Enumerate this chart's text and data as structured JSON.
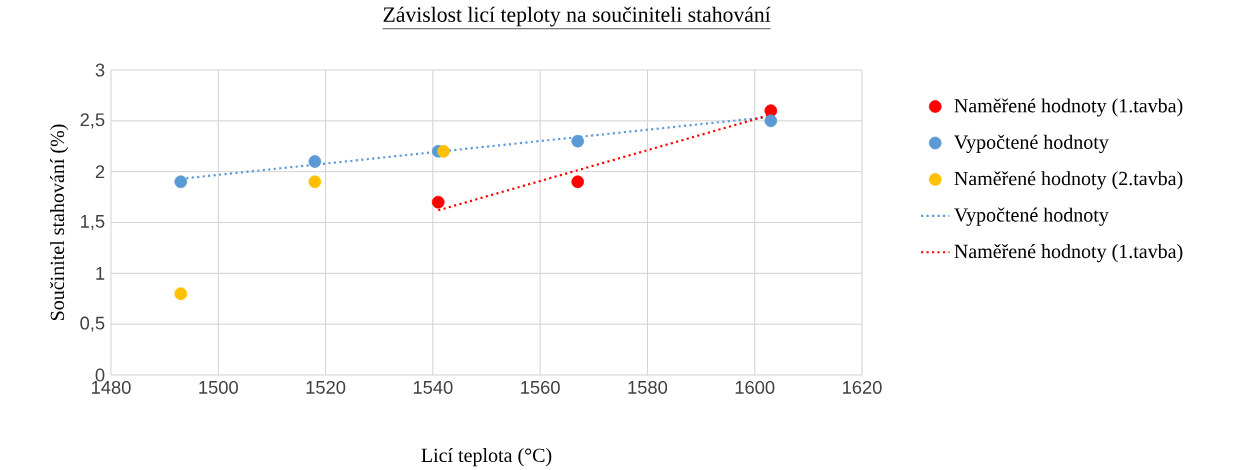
{
  "chart_data": {
    "type": "scatter",
    "title": "Závislost licí teploty na součiniteli stahování",
    "xlabel": "Licí teplota (°C)",
    "ylabel": "Součinitel stahování (%)",
    "xlim": [
      1480,
      1620
    ],
    "xticks": [
      1480,
      1500,
      1520,
      1540,
      1560,
      1580,
      1600,
      1620
    ],
    "ylim": [
      0,
      3
    ],
    "yticks": [
      0,
      {
        "value": 0.5,
        "label": "0,5"
      },
      1,
      {
        "value": 1.5,
        "label": "1,5"
      },
      2,
      {
        "value": 2.5,
        "label": "2,5"
      },
      3
    ],
    "grid": true,
    "legend": "right",
    "series": [
      {
        "name": "Naměřené hodnoty (1.tavba)",
        "type": "scatter",
        "marker": "circle",
        "color": "#ff0000",
        "x": [
          1541,
          1567,
          1603
        ],
        "values": [
          1.7,
          1.9,
          2.6
        ]
      },
      {
        "name": "Vypočtené hodnoty",
        "type": "scatter",
        "marker": "circle",
        "color": "#5b9bd5",
        "x": [
          1493,
          1518,
          1541,
          1567,
          1603
        ],
        "values": [
          1.9,
          2.1,
          2.2,
          2.3,
          2.5
        ]
      },
      {
        "name": "Naměřené hodnoty (2.tavba)",
        "type": "scatter",
        "marker": "circle",
        "color": "#ffc000",
        "x": [
          1493,
          1518,
          1542
        ],
        "values": [
          0.8,
          1.9,
          2.2
        ]
      },
      {
        "name": "Vypočtené hodnoty",
        "type": "line",
        "marker": "none",
        "line_style": "dotted",
        "color": "#5b9bd5",
        "x": [
          1493,
          1603
        ],
        "values": [
          1.93,
          2.54
        ]
      },
      {
        "name": "Naměřené hodnoty (1.tavba)",
        "type": "line",
        "marker": "none",
        "line_style": "dotted",
        "color": "#ff0000",
        "x": [
          1541,
          1603
        ],
        "values": [
          1.62,
          2.56
        ]
      }
    ]
  }
}
